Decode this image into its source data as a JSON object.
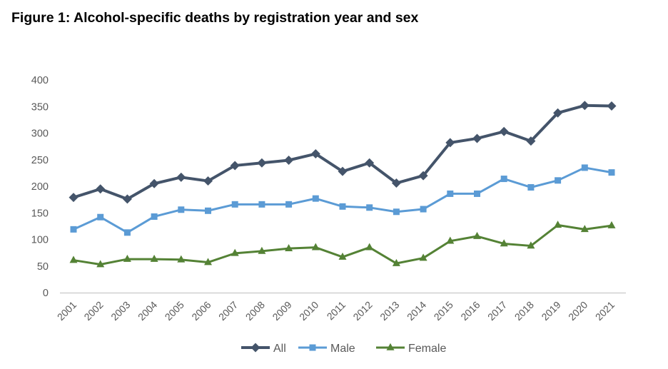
{
  "chart_data": {
    "type": "line",
    "title": "Figure 1: Alcohol-specific deaths by registration year and sex",
    "xlabel": "",
    "ylabel": "",
    "categories": [
      "2001",
      "2002",
      "2003",
      "2004",
      "2005",
      "2006",
      "2007",
      "2008",
      "2009",
      "2010",
      "2011",
      "2012",
      "2013",
      "2014",
      "2015",
      "2016",
      "2017",
      "2018",
      "2019",
      "2020",
      "2021"
    ],
    "ylim": [
      0,
      400
    ],
    "yticks": [
      0,
      50,
      100,
      150,
      200,
      250,
      300,
      350,
      400
    ],
    "grid": false,
    "legend_position": "bottom",
    "series": [
      {
        "name": "All",
        "color": "#44546A",
        "marker": "diamond",
        "values": [
          179,
          195,
          176,
          205,
          217,
          210,
          239,
          244,
          249,
          261,
          228,
          244,
          206,
          220,
          282,
          290,
          303,
          285,
          338,
          352,
          351
        ]
      },
      {
        "name": "Male",
        "color": "#5B9BD5",
        "marker": "square",
        "values": [
          119,
          142,
          113,
          143,
          156,
          154,
          166,
          166,
          166,
          177,
          162,
          160,
          152,
          157,
          186,
          186,
          214,
          198,
          211,
          235,
          226
        ]
      },
      {
        "name": "Female",
        "color": "#548235",
        "marker": "triangle",
        "values": [
          61,
          53,
          63,
          63,
          62,
          57,
          74,
          78,
          83,
          85,
          67,
          85,
          55,
          65,
          97,
          106,
          92,
          88,
          127,
          119,
          126
        ]
      }
    ]
  }
}
